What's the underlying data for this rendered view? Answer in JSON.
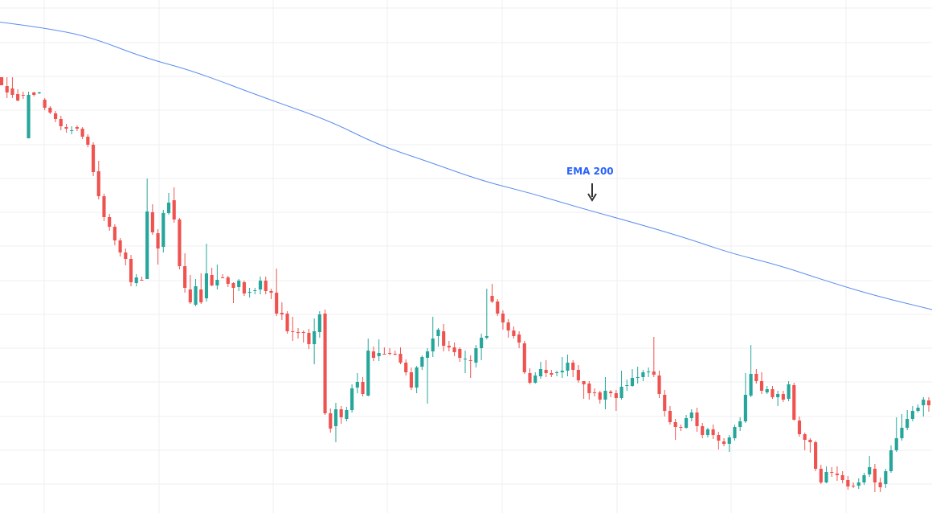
{
  "chart_data": {
    "type": "candlestick",
    "title": "",
    "xlabel": "",
    "ylabel": "",
    "ylim": [
      0,
      638
    ],
    "grid": true,
    "colors": {
      "up": "#26a69a",
      "down": "#ef5350",
      "ema": "#5b8def",
      "grid": "#efeff3",
      "arrow": "#333333",
      "label": "#2962ff"
    },
    "candles": [
      [
        -96,
        -106,
        -106,
        -96
      ],
      [
        -107,
        -115,
        -122,
        -96
      ],
      [
        -110,
        -118,
        -122,
        -96
      ],
      [
        -117,
        -125,
        -126,
        -111
      ],
      [
        -118,
        -118,
        -123,
        -114
      ],
      [
        -172,
        -118,
        -172,
        -114
      ],
      [
        -115,
        -118,
        -120,
        -114
      ],
      [
        -116,
        -115,
        -117,
        -114
      ],
      [
        -124,
        -134,
        -137,
        -122
      ],
      [
        -134,
        -140,
        -142,
        -132
      ],
      [
        -141,
        -148,
        -152,
        -138
      ],
      [
        -148,
        -157,
        -162,
        -144
      ],
      [
        -158,
        -160,
        -165,
        -154
      ],
      [
        -163,
        -162,
        -167,
        -157
      ],
      [
        -158,
        -160,
        -163,
        -156
      ],
      [
        -160,
        -170,
        -173,
        -158
      ],
      [
        -170,
        -180,
        -183,
        -167
      ],
      [
        -180,
        -214,
        -219,
        -177
      ],
      [
        -213,
        -244,
        -248,
        -200
      ],
      [
        -244,
        -270,
        -275,
        -241
      ],
      [
        -270,
        -282,
        -287,
        -266
      ],
      [
        -282,
        -299,
        -305,
        -279
      ],
      [
        -299,
        -314,
        -319,
        -296
      ],
      [
        -314,
        -322,
        -330,
        -309
      ],
      [
        -322,
        -351,
        -356,
        -317
      ],
      [
        -352,
        -345,
        -356,
        -341
      ],
      [
        -348,
        -348,
        -349,
        -344
      ],
      [
        -347,
        -263,
        -347,
        -222
      ],
      [
        -264,
        -289,
        -292,
        -254
      ],
      [
        -290,
        -309,
        -329,
        -285
      ],
      [
        -307,
        -265,
        -314,
        -261
      ],
      [
        -265,
        -252,
        -267,
        -240
      ],
      [
        -249,
        -273,
        -277,
        -233
      ],
      [
        -273,
        -331,
        -335,
        -271
      ],
      [
        -331,
        -358,
        -364,
        -315
      ],
      [
        -360,
        -376,
        -378,
        -342
      ],
      [
        -379,
        -356,
        -381,
        -347
      ],
      [
        -360,
        -376,
        -378,
        -340
      ],
      [
        -371,
        -340,
        -375,
        -303
      ],
      [
        -342,
        -355,
        -356,
        -333
      ],
      [
        -355,
        -348,
        -360,
        -329
      ],
      [
        -345,
        -345,
        -346,
        -341
      ],
      [
        -345,
        -353,
        -357,
        -343
      ],
      [
        -352,
        -358,
        -377,
        -351
      ],
      [
        -357,
        -349,
        -362,
        -347
      ],
      [
        -351,
        -365,
        -368,
        -349
      ],
      [
        -364,
        -363,
        -370,
        -358
      ],
      [
        -362,
        -361,
        -366,
        -358
      ],
      [
        -360,
        -349,
        -366,
        -344
      ],
      [
        -349,
        -362,
        -366,
        -344
      ],
      [
        -362,
        -364,
        -372,
        -359
      ],
      [
        -364,
        -390,
        -393,
        -334
      ],
      [
        -389,
        -391,
        -398,
        -376
      ],
      [
        -390,
        -412,
        -415,
        -387
      ],
      [
        -412,
        -413,
        -424,
        -394
      ],
      [
        -413,
        -413,
        -421,
        -408
      ],
      [
        -413,
        -413,
        -426,
        -411
      ],
      [
        -414,
        -428,
        -434,
        -409
      ],
      [
        -428,
        -412,
        -453,
        -396
      ],
      [
        -413,
        -391,
        -420,
        -387
      ],
      [
        -390,
        -514,
        -516,
        -385
      ],
      [
        -514,
        -533,
        -538,
        -508
      ],
      [
        -530,
        -509,
        -550,
        -501
      ],
      [
        -509,
        -519,
        -527,
        -505
      ],
      [
        -521,
        -510,
        -524,
        -506
      ],
      [
        -510,
        -483,
        -513,
        -478
      ],
      [
        -482,
        -475,
        -489,
        -464
      ],
      [
        -475,
        -490,
        -493,
        -469
      ],
      [
        -492,
        -436,
        -493,
        -421
      ],
      [
        -437,
        -445,
        -449,
        -431
      ],
      [
        -443,
        -439,
        -449,
        -422
      ],
      [
        -440,
        -440,
        -441,
        -432
      ],
      [
        -439,
        -439,
        -442,
        -433
      ],
      [
        -440,
        -441,
        -442,
        -436
      ],
      [
        -440,
        -451,
        -453,
        -432
      ],
      [
        -451,
        -463,
        -467,
        -447
      ],
      [
        -463,
        -482,
        -485,
        -457
      ],
      [
        -482,
        -457,
        -489,
        -455
      ],
      [
        -456,
        -444,
        -460,
        -442
      ],
      [
        -445,
        -437,
        -502,
        -433
      ],
      [
        -437,
        -421,
        -444,
        -394
      ],
      [
        -418,
        -410,
        -431,
        -408
      ],
      [
        -412,
        -430,
        -437,
        -403
      ],
      [
        -430,
        -432,
        -437,
        -424
      ],
      [
        -432,
        -438,
        -443,
        -426
      ],
      [
        -434,
        -445,
        -450,
        -432
      ],
      [
        -447,
        -446,
        -464,
        -436
      ],
      [
        -448,
        -449,
        -470,
        -442
      ],
      [
        -451,
        -433,
        -457,
        -429
      ],
      [
        -433,
        -420,
        -448,
        -415
      ],
      [
        -420,
        -418,
        -422,
        -359
      ],
      [
        -368,
        -375,
        -377,
        -353
      ],
      [
        -375,
        -390,
        -393,
        -372
      ],
      [
        -390,
        -401,
        -410,
        -386
      ],
      [
        -401,
        -411,
        -420,
        -397
      ],
      [
        -411,
        -418,
        -421,
        -406
      ],
      [
        -416,
        -426,
        -433,
        -412
      ],
      [
        -427,
        -463,
        -465,
        -424
      ],
      [
        -464,
        -476,
        -478,
        -458
      ],
      [
        -476,
        -467,
        -477,
        -463
      ],
      [
        -468,
        -459,
        -471,
        -450
      ],
      [
        -460,
        -464,
        -469,
        -448
      ],
      [
        -464,
        -466,
        -469,
        -460
      ],
      [
        -464,
        -463,
        -468,
        -461
      ],
      [
        -463,
        -461,
        -470,
        -444
      ],
      [
        -461,
        -451,
        -468,
        -441
      ],
      [
        -451,
        -460,
        -469,
        -448
      ],
      [
        -460,
        -473,
        -476,
        -454
      ],
      [
        -474,
        -478,
        -496,
        -474
      ],
      [
        -477,
        -489,
        -497,
        -474
      ],
      [
        -488,
        -488,
        -493,
        -483
      ],
      [
        -488,
        -497,
        -502,
        -486
      ],
      [
        -497,
        -486,
        -509,
        -469
      ],
      [
        -487,
        -489,
        -494,
        -485
      ],
      [
        -489,
        -495,
        -511,
        -485
      ],
      [
        -495,
        -481,
        -497,
        -461
      ],
      [
        -480,
        -479,
        -486,
        -472
      ],
      [
        -480,
        -470,
        -481,
        -459
      ],
      [
        -470,
        -469,
        -477,
        -456
      ],
      [
        -469,
        -463,
        -474,
        -460
      ],
      [
        -463,
        -462,
        -469,
        -457
      ],
      [
        -462,
        -466,
        -469,
        -419
      ],
      [
        -467,
        -490,
        -495,
        -461
      ],
      [
        -491,
        -511,
        -518,
        -485
      ],
      [
        -511,
        -525,
        -528,
        -505
      ],
      [
        -525,
        -531,
        -547,
        -521
      ],
      [
        -531,
        -532,
        -536,
        -528
      ],
      [
        -532,
        -520,
        -533,
        -516
      ],
      [
        -520,
        -513,
        -524,
        -509
      ],
      [
        -513,
        -530,
        -537,
        -507
      ],
      [
        -530,
        -541,
        -545,
        -526
      ],
      [
        -541,
        -534,
        -544,
        -532
      ],
      [
        -534,
        -541,
        -546,
        -528
      ],
      [
        -541,
        -548,
        -559,
        -537
      ],
      [
        -549,
        -552,
        -555,
        -545
      ],
      [
        -552,
        -544,
        -562,
        -541
      ],
      [
        -545,
        -531,
        -548,
        -528
      ],
      [
        -531,
        -524,
        -536,
        -519
      ],
      [
        -524,
        -491,
        -526,
        -464
      ],
      [
        -492,
        -465,
        -494,
        -429
      ],
      [
        -465,
        -474,
        -477,
        -459
      ],
      [
        -474,
        -486,
        -490,
        -463
      ],
      [
        -488,
        -484,
        -490,
        -480
      ],
      [
        -484,
        -494,
        -496,
        -480
      ],
      [
        -494,
        -490,
        -505,
        -486
      ],
      [
        -490,
        -497,
        -500,
        -486
      ],
      [
        -496,
        -478,
        -499,
        -474
      ],
      [
        -479,
        -522,
        -523,
        -476
      ],
      [
        -523,
        -540,
        -543,
        -518
      ],
      [
        -540,
        -547,
        -560,
        -538
      ],
      [
        -547,
        -550,
        -563,
        -545
      ],
      [
        -550,
        -583,
        -586,
        -548
      ],
      [
        -583,
        -600,
        -602,
        -578
      ],
      [
        -600,
        -587,
        -601,
        -580
      ],
      [
        -587,
        -588,
        -593,
        -581
      ],
      [
        -589,
        -591,
        -598,
        -580
      ],
      [
        -591,
        -597,
        -601,
        -586
      ],
      [
        -597,
        -605,
        -609,
        -592
      ],
      [
        -604,
        -604,
        -607,
        -600
      ],
      [
        -604,
        -600,
        -608,
        -595
      ],
      [
        -600,
        -591,
        -603,
        -588
      ],
      [
        -590,
        -581,
        -593,
        -567
      ],
      [
        -583,
        -600,
        -612,
        -577
      ],
      [
        -600,
        -606,
        -612,
        -594
      ],
      [
        -602,
        -586,
        -607,
        -583
      ],
      [
        -586,
        -560,
        -588,
        -554
      ],
      [
        -560,
        -545,
        -562,
        -519
      ],
      [
        -545,
        -532,
        -548,
        -515
      ],
      [
        -532,
        -521,
        -535,
        -510
      ],
      [
        -521,
        -511,
        -524,
        -505
      ],
      [
        -511,
        -507,
        -513,
        -503
      ],
      [
        -504,
        -497,
        -518,
        -494
      ],
      [
        -498,
        -504,
        -512,
        -494
      ]
    ],
    "ema": [
      [
        -12,
        -26
      ],
      [
        50,
        -34
      ],
      [
        110,
        -45
      ],
      [
        180,
        -72
      ],
      [
        240,
        -88
      ],
      [
        330,
        -122
      ],
      [
        410,
        -150
      ],
      [
        470,
        -180
      ],
      [
        530,
        -200
      ],
      [
        600,
        -225
      ],
      [
        660,
        -240
      ],
      [
        720,
        -258
      ],
      [
        800,
        -280
      ],
      [
        860,
        -298
      ],
      [
        910,
        -315
      ],
      [
        970,
        -330
      ],
      [
        1030,
        -350
      ],
      [
        1090,
        -368
      ],
      [
        1160,
        -385
      ]
    ],
    "annotation": {
      "text": "EMA 200",
      "target_x": 737
    }
  }
}
